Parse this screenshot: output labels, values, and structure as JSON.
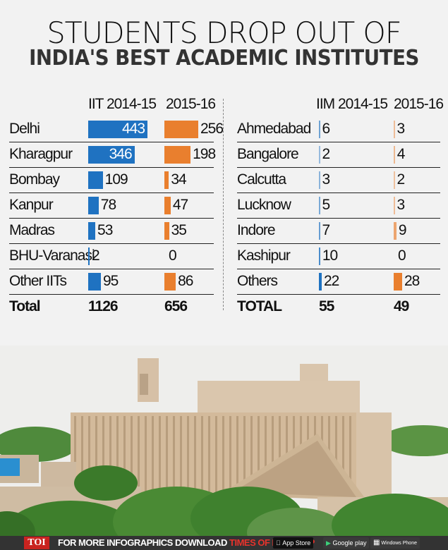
{
  "title": {
    "line1": "STUDENTS DROP OUT OF",
    "line2": "INDIA'S BEST ACADEMIC INSTITUTES"
  },
  "iit_table": {
    "header_col1": "IIT 2014-15",
    "header_col2": "2015-16",
    "rows": [
      {
        "name": "Delhi",
        "v1": "443",
        "v2": "256"
      },
      {
        "name": "Kharagpur",
        "v1": "346",
        "v2": "198"
      },
      {
        "name": "Bombay",
        "v1": "109",
        "v2": "34"
      },
      {
        "name": "Kanpur",
        "v1": "78",
        "v2": "47"
      },
      {
        "name": "Madras",
        "v1": "53",
        "v2": "35"
      },
      {
        "name": "BHU-Varanasi",
        "v1": "2",
        "v2": "0"
      },
      {
        "name": "Other IITs",
        "v1": "95",
        "v2": "86"
      }
    ],
    "total": {
      "name": "Total",
      "v1": "1126",
      "v2": "656"
    }
  },
  "iim_table": {
    "header_col1": "IIM 2014-15",
    "header_col2": "2015-16",
    "rows": [
      {
        "name": "Ahmedabad",
        "v1": "6",
        "v2": "3"
      },
      {
        "name": "Bangalore",
        "v1": "2",
        "v2": "4"
      },
      {
        "name": "Calcutta",
        "v1": "3",
        "v2": "2"
      },
      {
        "name": "Lucknow",
        "v1": "5",
        "v2": "3"
      },
      {
        "name": "Indore",
        "v1": "7",
        "v2": "9"
      },
      {
        "name": "Kashipur",
        "v1": "10",
        "v2": "0"
      },
      {
        "name": "Others",
        "v1": "22",
        "v2": "28"
      }
    ],
    "total": {
      "name": "TOTAL",
      "v1": "55",
      "v2": "49"
    }
  },
  "colors": {
    "series_2014_15": "#1f72c1",
    "series_2015_16": "#e97f2e",
    "background": "#f2f2f2",
    "footer_bg": "#333333",
    "toi_red": "#c9231f"
  },
  "footer": {
    "logo": "TOI",
    "text_white": "FOR MORE  INFOGRAPHICS DOWNLOAD ",
    "text_red": "TIMES OF INDIA  APP",
    "app_store": "App Store",
    "google_play": "Google play",
    "windows_phone": "Windows Phone"
  },
  "chart_data": [
    {
      "type": "bar",
      "title": "STUDENTS DROP OUT OF INDIA'S BEST ACADEMIC INSTITUTES — IIT",
      "categories": [
        "Delhi",
        "Kharagpur",
        "Bombay",
        "Kanpur",
        "Madras",
        "BHU-Varanasi",
        "Other IITs"
      ],
      "series": [
        {
          "name": "IIT 2014-15",
          "values": [
            443,
            346,
            109,
            78,
            53,
            2,
            95
          ]
        },
        {
          "name": "2015-16",
          "values": [
            256,
            198,
            34,
            47,
            35,
            0,
            86
          ]
        }
      ],
      "totals": {
        "2014-15": 1126,
        "2015-16": 656
      },
      "orientation": "horizontal"
    },
    {
      "type": "bar",
      "title": "STUDENTS DROP OUT OF INDIA'S BEST ACADEMIC INSTITUTES — IIM",
      "categories": [
        "Ahmedabad",
        "Bangalore",
        "Calcutta",
        "Lucknow",
        "Indore",
        "Kashipur",
        "Others"
      ],
      "series": [
        {
          "name": "IIM 2014-15",
          "values": [
            6,
            2,
            3,
            5,
            7,
            10,
            22
          ]
        },
        {
          "name": "2015-16",
          "values": [
            3,
            4,
            2,
            3,
            9,
            0,
            28
          ]
        }
      ],
      "totals": {
        "2014-15": 55,
        "2015-16": 49
      },
      "orientation": "horizontal"
    }
  ]
}
